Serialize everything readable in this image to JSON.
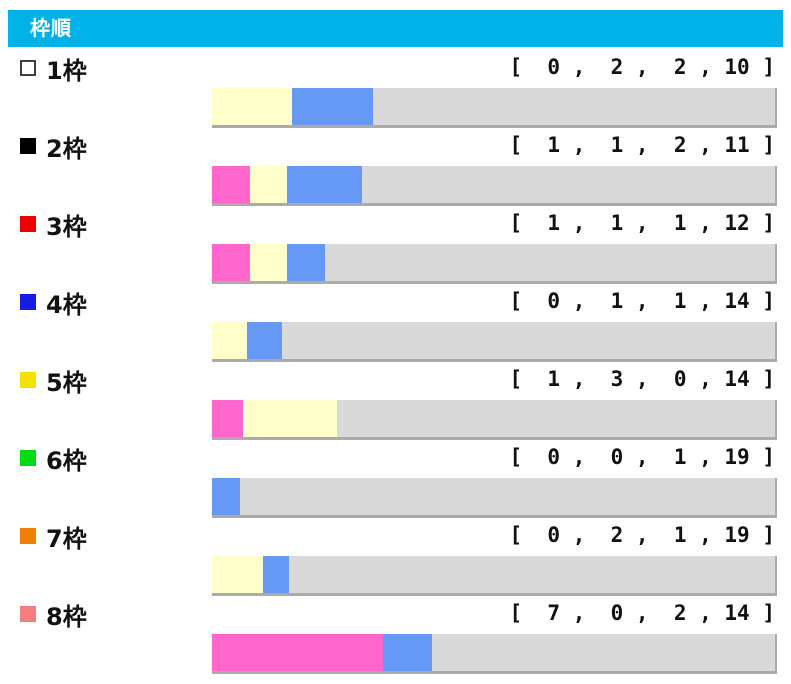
{
  "header": {
    "title": "枠順",
    "background_color": "#00B2E8",
    "text_color": "#FFFFFF"
  },
  "chart_data": {
    "type": "bar",
    "orientation": "horizontal",
    "stacked": true,
    "title": "枠順",
    "categories": [
      "1枠",
      "2枠",
      "3枠",
      "4枠",
      "5枠",
      "6枠",
      "7枠",
      "8枠"
    ],
    "segment_colors": [
      "#FF66CC",
      "#FFFFCC",
      "#6699F5",
      "#D9D9D9"
    ],
    "bar_background_color": "#D9D9D9",
    "bar_border_color": "#ABABAB",
    "rows": [
      {
        "label": "1枠",
        "marker": {
          "fill": "#FFFFFF",
          "border": "#3F3F3F"
        },
        "values": [
          0,
          2,
          2,
          10
        ],
        "values_text": "[  0 ,  2 ,  2 , 10 ]"
      },
      {
        "label": "2枠",
        "marker": {
          "fill": "#000000",
          "border": "#000000"
        },
        "values": [
          1,
          1,
          2,
          11
        ],
        "values_text": "[  1 ,  1 ,  2 , 11 ]"
      },
      {
        "label": "3枠",
        "marker": {
          "fill": "#EE0000",
          "border": "#EE0000"
        },
        "values": [
          1,
          1,
          1,
          12
        ],
        "values_text": "[  1 ,  1 ,  1 , 12 ]"
      },
      {
        "label": "4枠",
        "marker": {
          "fill": "#1A1AE6",
          "border": "#1A1AE6"
        },
        "values": [
          0,
          1,
          1,
          14
        ],
        "values_text": "[  0 ,  1 ,  1 , 14 ]"
      },
      {
        "label": "5枠",
        "marker": {
          "fill": "#F0E300",
          "border": "#F0E300"
        },
        "values": [
          1,
          3,
          0,
          14
        ],
        "values_text": "[  1 ,  3 ,  0 , 14 ]"
      },
      {
        "label": "6枠",
        "marker": {
          "fill": "#00DC14",
          "border": "#00DC14"
        },
        "values": [
          0,
          0,
          1,
          19
        ],
        "values_text": "[  0 ,  0 ,  1 , 19 ]"
      },
      {
        "label": "7枠",
        "marker": {
          "fill": "#F07E00",
          "border": "#F07E00"
        },
        "values": [
          0,
          2,
          1,
          19
        ],
        "values_text": "[  0 ,  2 ,  1 , 19 ]"
      },
      {
        "label": "8枠",
        "marker": {
          "fill": "#F57D7D",
          "border": "#F57D7D"
        },
        "values": [
          7,
          0,
          2,
          14
        ],
        "values_text": "[  7 ,  0 ,  2 , 14 ]"
      }
    ]
  }
}
